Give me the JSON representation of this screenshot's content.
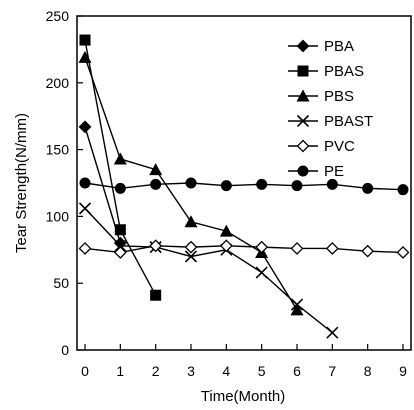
{
  "chart_data": {
    "type": "line",
    "xlabel": "Time(Month)",
    "ylabel": "Tear Strength(N/mm)",
    "xlim": [
      0,
      9
    ],
    "ylim": [
      0,
      250
    ],
    "x_ticks": [
      "0",
      "1",
      "2",
      "3",
      "4",
      "5",
      "6",
      "7",
      "8",
      "9"
    ],
    "y_ticks": [
      "0",
      "50",
      "100",
      "150",
      "200",
      "250"
    ],
    "grid": false,
    "legend_position": "top-right",
    "series": [
      {
        "name": "PBA",
        "marker": "diamond-filled",
        "x": [
          0,
          1
        ],
        "y": [
          167,
          80
        ]
      },
      {
        "name": "PBAS",
        "marker": "square-filled",
        "x": [
          0,
          1,
          2
        ],
        "y": [
          232,
          90,
          41
        ]
      },
      {
        "name": "PBS",
        "marker": "triangle-filled",
        "x": [
          0,
          1,
          2,
          3,
          4,
          5,
          6
        ],
        "y": [
          219,
          143,
          135,
          96,
          89,
          73,
          30
        ]
      },
      {
        "name": "PBAST",
        "marker": "x",
        "x": [
          0,
          1,
          2,
          3,
          4,
          5,
          6,
          7
        ],
        "y": [
          106,
          78,
          77,
          70,
          75,
          58,
          34,
          13
        ]
      },
      {
        "name": "PVC",
        "marker": "diamond-open",
        "x": [
          0,
          1,
          2,
          3,
          4,
          5,
          6,
          7,
          8,
          9
        ],
        "y": [
          76,
          73,
          78,
          77,
          78,
          77,
          76,
          76,
          74,
          73
        ]
      },
      {
        "name": "PE",
        "marker": "circle-filled",
        "x": [
          0,
          1,
          2,
          3,
          4,
          5,
          6,
          7,
          8,
          9
        ],
        "y": [
          125,
          121,
          124,
          125,
          123,
          124,
          123,
          124,
          121,
          120
        ]
      }
    ]
  }
}
